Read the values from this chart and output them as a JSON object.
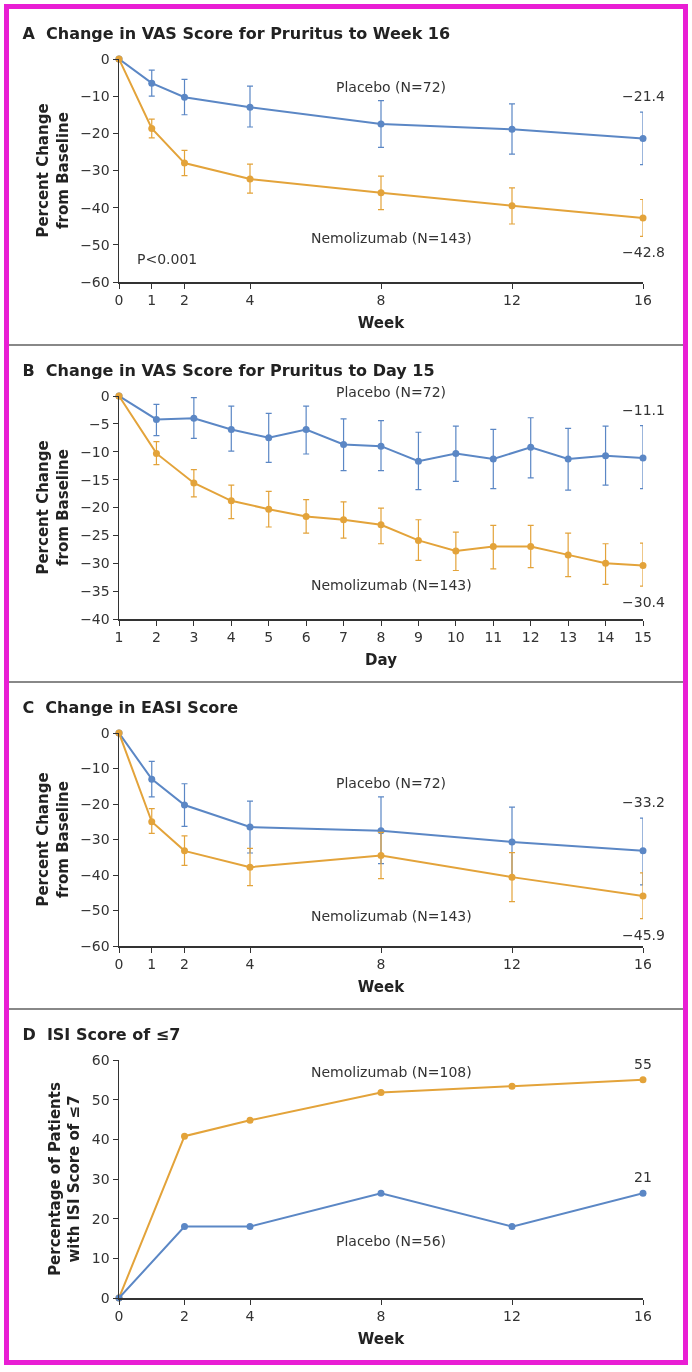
{
  "chart_data": [
    {
      "type": "line",
      "title": "A  Change in VAS Score for Pruritus to Week 16",
      "xlabel": "Week",
      "ylabel": "Percent Change from Baseline",
      "x": [
        0,
        1,
        2,
        4,
        8,
        12,
        16
      ],
      "xlim": [
        0,
        16
      ],
      "xticks": [
        0,
        1,
        2,
        4,
        8,
        12,
        16
      ],
      "ylim": [
        -60,
        0
      ],
      "yticks": [
        -60,
        -50,
        -40,
        -30,
        -20,
        -10,
        0
      ],
      "grid": false,
      "legend": false,
      "marker": "circle",
      "annotations": [
        "P<0.001"
      ],
      "series": [
        {
          "name": "Placebo (N=72)",
          "color": "#5b87c5",
          "values": [
            0,
            -6.5,
            -10.3,
            -13,
            -17.5,
            -18.9,
            -21.4
          ],
          "errors": [
            null,
            [
              -10,
              -3
            ],
            [
              -15,
              -5.5
            ],
            [
              -18.3,
              -7.3
            ],
            [
              -23.8,
              -11.2
            ],
            [
              -25.6,
              -12.1
            ],
            [
              -28.4,
              -14.3
            ]
          ],
          "value_labels": [
            null,
            null,
            null,
            null,
            null,
            null,
            "−21.4"
          ]
        },
        {
          "name": "Nemolizumab (N=143)",
          "color": "#e3a33a",
          "values": [
            0,
            -18.7,
            -28,
            -32.3,
            -36,
            -39.5,
            -42.8
          ],
          "errors": [
            null,
            [
              -21.2,
              -16.2
            ],
            [
              -31.4,
              -24.6
            ],
            [
              -36.1,
              -28.3
            ],
            [
              -40.5,
              -31.5
            ],
            [
              -44.4,
              -34.7
            ],
            [
              -47.7,
              -37.8
            ]
          ],
          "value_labels": [
            null,
            null,
            null,
            null,
            null,
            null,
            "−42.8"
          ]
        }
      ]
    },
    {
      "type": "line",
      "title": "B  Change in VAS Score for Pruritus to Day 15",
      "xlabel": "Day",
      "ylabel": "Percent Change from Baseline",
      "x": [
        1,
        2,
        3,
        4,
        5,
        6,
        7,
        8,
        9,
        10,
        11,
        12,
        13,
        14,
        15
      ],
      "xlim": [
        1,
        15
      ],
      "xticks": [
        1,
        2,
        3,
        4,
        5,
        6,
        7,
        8,
        9,
        10,
        11,
        12,
        13,
        14,
        15
      ],
      "ylim": [
        -40,
        0
      ],
      "yticks": [
        -40,
        -35,
        -30,
        -25,
        -20,
        -15,
        -10,
        -5,
        0
      ],
      "grid": false,
      "legend": false,
      "marker": "circle",
      "series": [
        {
          "name": "Placebo (N=72)",
          "color": "#5b87c5",
          "values": [
            0,
            -4.2,
            -4,
            -6,
            -7.5,
            -6,
            -8.7,
            -9,
            -11.7,
            -10.3,
            -11.3,
            -9.2,
            -11.3,
            -10.7,
            -11.1
          ],
          "errors": [
            null,
            [
              -7.1,
              -1.5
            ],
            [
              -7.6,
              -0.3
            ],
            [
              -9.9,
              -1.8
            ],
            [
              -11.9,
              -3.1
            ],
            [
              -10.4,
              -1.8
            ],
            [
              -13.4,
              -4.1
            ],
            [
              -13.4,
              -4.4
            ],
            [
              -16.8,
              -6.5
            ],
            [
              -15.3,
              -5.4
            ],
            [
              -16.6,
              -6
            ],
            [
              -14.7,
              -3.9
            ],
            [
              -16.9,
              -5.8
            ],
            [
              -16,
              -5.4
            ],
            [
              -16.6,
              -5.3
            ]
          ],
          "value_labels": [
            null,
            null,
            null,
            null,
            null,
            null,
            null,
            null,
            null,
            null,
            null,
            null,
            null,
            null,
            "−11.1"
          ]
        },
        {
          "name": "Nemolizumab (N=143)",
          "color": "#e3a33a",
          "values": [
            0,
            -10.3,
            -15.6,
            -18.8,
            -20.3,
            -21.6,
            -22.2,
            -23.1,
            -25.9,
            -27.8,
            -27,
            -27,
            -28.5,
            -30,
            -30.4
          ],
          "errors": [
            null,
            [
              -12.3,
              -8.2
            ],
            [
              -18.1,
              -13.2
            ],
            [
              -22,
              -16
            ],
            [
              -23.5,
              -17.1
            ],
            [
              -24.6,
              -18.6
            ],
            [
              -25.5,
              -19
            ],
            [
              -26.5,
              -20.1
            ],
            [
              -29.5,
              -22.2
            ],
            [
              -31.3,
              -24.4
            ],
            [
              -31,
              -23.2
            ],
            [
              -30.8,
              -23.2
            ],
            [
              -32.4,
              -24.6
            ],
            [
              -33.8,
              -26.5
            ],
            [
              -34.1,
              -26.4
            ]
          ],
          "value_labels": [
            null,
            null,
            null,
            null,
            null,
            null,
            null,
            null,
            null,
            null,
            null,
            null,
            null,
            null,
            "−30.4"
          ]
        }
      ]
    },
    {
      "type": "line",
      "title": "C  Change in EASI Score",
      "xlabel": "Week",
      "ylabel": "Percent Change from Baseline",
      "x": [
        0,
        1,
        2,
        4,
        8,
        12,
        16
      ],
      "xlim": [
        0,
        16
      ],
      "xticks": [
        0,
        1,
        2,
        4,
        8,
        12,
        16
      ],
      "ylim": [
        -60,
        0
      ],
      "yticks": [
        -60,
        -50,
        -40,
        -30,
        -20,
        -10,
        0
      ],
      "grid": false,
      "legend": false,
      "marker": "circle",
      "series": [
        {
          "name": "Placebo (N=72)",
          "color": "#5b87c5",
          "values": [
            0,
            -13,
            -20.3,
            -26.5,
            -27.5,
            -30.7,
            -33.2
          ],
          "errors": [
            null,
            [
              -18,
              -8
            ],
            [
              -26.3,
              -14.3
            ],
            [
              -33.8,
              -19.2
            ],
            [
              -36.8,
              -18
            ],
            [
              -40.6,
              -20.9
            ],
            [
              -42.8,
              -24
            ]
          ],
          "value_labels": [
            null,
            null,
            null,
            null,
            null,
            null,
            "−33.2"
          ]
        },
        {
          "name": "Nemolizumab (N=143)",
          "color": "#e3a33a",
          "values": [
            0,
            -25,
            -33.2,
            -37.8,
            -34.5,
            -40.6,
            -45.9
          ],
          "errors": [
            null,
            [
              -28.3,
              -21.3
            ],
            [
              -37.3,
              -29
            ],
            [
              -43,
              -32.5
            ],
            [
              -41,
              -28
            ],
            [
              -47.5,
              -33.7
            ],
            [
              -52.3,
              -39.4
            ]
          ],
          "value_labels": [
            null,
            null,
            null,
            null,
            null,
            null,
            "−45.9"
          ]
        }
      ]
    },
    {
      "type": "line",
      "title": "D  ISI Score of ≤7",
      "xlabel": "Week",
      "ylabel": "Percentage of Patients with ISI Score of ≤7",
      "x": [
        0,
        2,
        4,
        8,
        12,
        16
      ],
      "xlim": [
        0,
        16
      ],
      "xticks": [
        0,
        2,
        4,
        8,
        12,
        16
      ],
      "ylim": [
        0,
        60
      ],
      "yticks": [
        0,
        10,
        20,
        30,
        40,
        50,
        60
      ],
      "grid": false,
      "legend": false,
      "marker": "circle",
      "annotations": [
        {
          "text": "21",
          "x": 16,
          "y": 26.4
        }
      ],
      "series": [
        {
          "name": "Nemolizumab (N=108)",
          "color": "#e3a33a",
          "values": [
            0,
            40.8,
            44.8,
            51.8,
            53.4,
            55
          ],
          "value_labels": [
            null,
            null,
            null,
            null,
            null,
            "55"
          ]
        },
        {
          "name": "Placebo (N=56)",
          "color": "#5b87c5",
          "values": [
            0,
            18,
            18,
            26.4,
            18,
            26.4
          ]
        }
      ]
    }
  ]
}
